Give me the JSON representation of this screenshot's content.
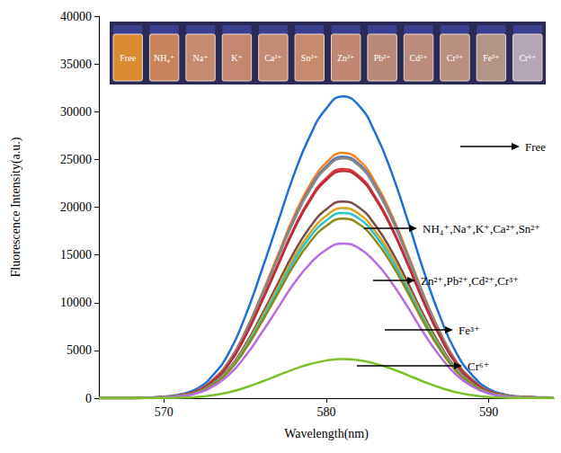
{
  "chart_data": {
    "type": "line",
    "x_label": "Wavelength(nm)",
    "y_label": "Fluorescence Intensity(a.u.)",
    "xlim": [
      566,
      594
    ],
    "xticks": [
      570,
      580,
      590
    ],
    "ylim": [
      0,
      40000
    ],
    "yticks": [
      0,
      5000,
      10000,
      15000,
      20000,
      25000,
      30000,
      35000,
      40000
    ],
    "grid": false,
    "x": [
      566,
      568,
      570,
      571,
      572,
      573,
      574,
      575,
      576,
      577,
      578,
      579,
      580,
      581,
      582,
      583,
      584,
      585,
      586,
      587,
      588,
      589,
      590,
      591,
      592,
      594
    ],
    "series": [
      {
        "name": "Free",
        "color": "#1f6fd6",
        "values": [
          0,
          0,
          160,
          410,
          950,
          2370,
          4740,
          8530,
          13270,
          18330,
          23380,
          27490,
          30340,
          31600,
          30650,
          27810,
          23700,
          18640,
          13270,
          8530,
          4740,
          2370,
          950,
          380,
          160,
          60
        ]
      },
      {
        "name": "NH₄⁺",
        "color": "#ff7f1e",
        "values": [
          0,
          0,
          130,
          330,
          770,
          1930,
          3860,
          6940,
          10790,
          14910,
          19020,
          22360,
          24670,
          25700,
          24930,
          22620,
          19280,
          15160,
          10790,
          6940,
          3860,
          1930,
          770,
          310,
          130,
          50
        ]
      },
      {
        "name": "Na⁺",
        "color": "#5a78b0",
        "values": [
          0,
          0,
          130,
          330,
          760,
          1900,
          3800,
          6830,
          10630,
          14670,
          18720,
          22010,
          24290,
          25300,
          24540,
          22260,
          18980,
          14930,
          10630,
          6830,
          3800,
          1900,
          760,
          300,
          130,
          50
        ]
      },
      {
        "name": "K⁺",
        "color": "#8a8a8a",
        "values": [
          0,
          0,
          130,
          330,
          750,
          1880,
          3770,
          6780,
          10540,
          14560,
          18570,
          21840,
          24100,
          25100,
          24350,
          22090,
          18830,
          14810,
          10540,
          6780,
          3770,
          1880,
          750,
          300,
          130,
          50
        ]
      },
      {
        "name": "Ca²⁺",
        "color": "#e8343a",
        "values": [
          0,
          0,
          120,
          310,
          720,
          1800,
          3600,
          6480,
          10080,
          13920,
          17760,
          20880,
          23040,
          24000,
          23280,
          21120,
          18000,
          14160,
          10080,
          6480,
          3600,
          1800,
          720,
          290,
          120,
          50
        ]
      },
      {
        "name": "Sn²⁺",
        "color": "#b5303a",
        "values": [
          0,
          0,
          120,
          310,
          710,
          1790,
          3570,
          6430,
          10000,
          13800,
          17610,
          20710,
          22850,
          23800,
          23090,
          20940,
          17850,
          14040,
          10000,
          6430,
          3570,
          1790,
          710,
          290,
          120,
          50
        ]
      },
      {
        "name": "Zn²⁺",
        "color": "#7a4a46",
        "values": [
          0,
          0,
          100,
          270,
          620,
          1550,
          3090,
          5560,
          8650,
          11950,
          15240,
          17920,
          19780,
          20600,
          19980,
          18130,
          15450,
          12150,
          8650,
          5560,
          3090,
          1550,
          620,
          250,
          100,
          40
        ]
      },
      {
        "name": "Pb²⁺",
        "color": "#d9a520",
        "values": [
          0,
          0,
          100,
          260,
          600,
          1490,
          2990,
          5370,
          8360,
          11540,
          14730,
          17310,
          19100,
          19900,
          19300,
          17510,
          14930,
          11740,
          8360,
          5370,
          2990,
          1490,
          600,
          240,
          100,
          40
        ]
      },
      {
        "name": "Cd²⁺",
        "color": "#2bc4c8",
        "values": [
          0,
          0,
          100,
          250,
          580,
          1460,
          2910,
          5240,
          8150,
          11250,
          14360,
          16880,
          18620,
          19400,
          18820,
          17070,
          14550,
          11450,
          8150,
          5240,
          2910,
          1460,
          580,
          230,
          100,
          40
        ]
      },
      {
        "name": "Cr³⁺",
        "color": "#8a8a1a",
        "values": [
          0,
          0,
          90,
          240,
          560,
          1410,
          2820,
          5080,
          7900,
          10900,
          13910,
          16360,
          18050,
          18800,
          18240,
          16540,
          14100,
          11090,
          7900,
          5080,
          2820,
          1410,
          560,
          230,
          90,
          40
        ]
      },
      {
        "name": "Fe³⁺",
        "color": "#b46ee0",
        "values": [
          0,
          0,
          80,
          210,
          490,
          1220,
          2430,
          4370,
          6800,
          9400,
          11990,
          14090,
          15550,
          16200,
          15710,
          14260,
          12150,
          9560,
          6800,
          4370,
          2430,
          1220,
          490,
          190,
          80,
          30
        ]
      },
      {
        "name": "Cr⁶⁺",
        "color": "#7cc12a",
        "values": [
          0,
          0,
          20,
          50,
          120,
          310,
          620,
          1110,
          1720,
          2380,
          3030,
          3570,
          3940,
          4100,
          3980,
          3610,
          3080,
          2420,
          1720,
          1110,
          620,
          310,
          120,
          50,
          20,
          10
        ]
      }
    ],
    "annotations": [
      "Free",
      "NH₄⁺,Na⁺,K⁺,Ca²⁺,Sn²⁺",
      "Zn²⁺,Pb²⁺,Cd²⁺,Cr³⁺",
      "Fe³⁺",
      "Cr⁶⁺"
    ],
    "inset_labels": [
      "Free",
      "NH₄⁺",
      "Na⁺",
      "K⁺",
      "Ca²⁺",
      "Sn²⁺",
      "Zn²⁺",
      "Pb²⁺",
      "Cd²⁺",
      "Cr³⁺",
      "Fe³⁺",
      "Cr⁶⁺"
    ]
  }
}
